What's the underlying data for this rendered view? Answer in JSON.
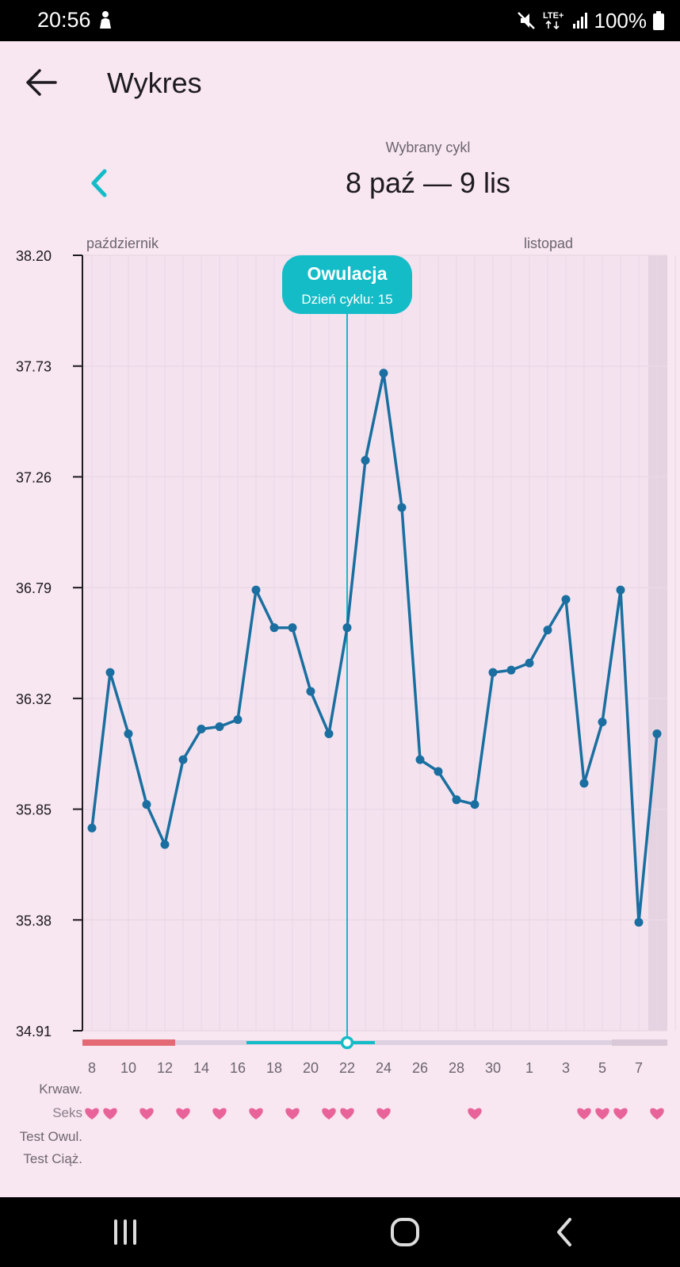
{
  "status_bar": {
    "time": "20:56",
    "network": "LTE+",
    "battery": "100%",
    "icons": [
      "notification-icon",
      "mute-icon",
      "lte-icon",
      "signal-icon",
      "battery-icon"
    ]
  },
  "app_bar": {
    "back_icon": "arrow-left-icon",
    "title": "Wykres"
  },
  "cycle": {
    "caption": "Wybrany cykl",
    "range": "8 paź — 9 lis",
    "prev_icon": "chevron-left-icon"
  },
  "colors": {
    "background": "#f8e6f0",
    "line": "#1a6fa0",
    "accent": "#14bcc8",
    "bleeding": "#e36a74",
    "heart": "#e8639a",
    "track": "#ddd0e0"
  },
  "chart_data": {
    "type": "line",
    "month_labels": [
      "październik",
      "listopad"
    ],
    "y_ticks": [
      "38.20",
      "37.73",
      "37.26",
      "36.79",
      "36.32",
      "35.85",
      "35.38",
      "34.91"
    ],
    "ylim": [
      34.91,
      38.2
    ],
    "x_tick_labels": [
      "8",
      "10",
      "12",
      "14",
      "16",
      "18",
      "20",
      "22",
      "24",
      "26",
      "28",
      "30",
      "1",
      "3",
      "5",
      "7"
    ],
    "x": [
      "8 paź",
      "9 paź",
      "10 paź",
      "11 paź",
      "12 paź",
      "13 paź",
      "14 paź",
      "15 paź",
      "16 paź",
      "17 paź",
      "18 paź",
      "19 paź",
      "20 paź",
      "21 paź",
      "22 paź",
      "23 paź",
      "24 paź",
      "25 paź",
      "26 paź",
      "27 paź",
      "28 paź",
      "29 paź",
      "30 paź",
      "31 paź",
      "1 lis",
      "2 lis",
      "3 lis",
      "4 lis",
      "5 lis",
      "6 lis",
      "7 lis",
      "8 lis",
      "9 lis"
    ],
    "values": [
      35.77,
      36.43,
      36.17,
      35.87,
      35.7,
      36.06,
      36.19,
      36.2,
      36.23,
      36.78,
      36.62,
      36.62,
      36.35,
      36.17,
      36.62,
      37.33,
      37.7,
      37.13,
      36.06,
      36.01,
      35.89,
      35.87,
      36.43,
      36.44,
      36.47,
      36.61,
      36.74,
      35.96,
      36.22,
      36.78,
      35.37,
      36.17,
      null
    ],
    "ovulation": {
      "title": "Owulacja",
      "subtitle": "Dzień cyklu: 15",
      "date": "22 paź"
    },
    "grid": true,
    "rows": [
      "Krwaw.",
      "Seks",
      "Test Owul.",
      "Test Ciąż."
    ],
    "sex_days": [
      "8 paź",
      "9 paź",
      "11 paź",
      "13 paź",
      "15 paź",
      "17 paź",
      "19 paź",
      "21 paź",
      "22 paź",
      "24 paź",
      "29 paź",
      "4 lis",
      "5 lis",
      "6 lis",
      "8 lis"
    ],
    "bleeding_range": [
      "8 paź",
      "13 paź"
    ],
    "fertile_range": [
      "17 paź",
      "23 paź"
    ]
  },
  "nav_bar": {
    "icons": [
      "recent-apps-icon",
      "home-icon",
      "back-icon"
    ]
  }
}
